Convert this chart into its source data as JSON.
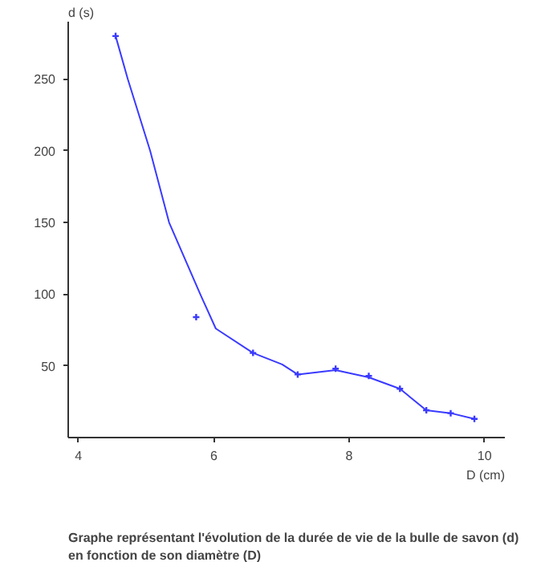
{
  "chart_data": {
    "type": "scatter",
    "title": "Graphe représentant l'évolution de la durée de vie de la bulle de savon (d)\nen fonction de son diamètre (D)",
    "xlabel": "D (cm)",
    "ylabel": "d (s)",
    "x": [
      4.55,
      5.74,
      6.58,
      7.24,
      7.8,
      8.29,
      8.75,
      9.14,
      9.5,
      9.85
    ],
    "series": [
      {
        "color": "#3a3aff",
        "values": [
          280,
          84,
          59,
          44,
          48,
          43,
          34,
          19,
          17,
          13
        ],
        "marker": "cross"
      },
      {
        "type": "line",
        "color": "#3a3aff",
        "x": [
          4.55,
          4.73,
          5.06,
          5.34,
          5.8,
          6.03,
          6.58,
          7.01,
          7.24,
          7.8,
          8.29,
          8.75,
          9.14,
          9.5,
          9.85
        ],
        "values": [
          280,
          250,
          200,
          150,
          100,
          76,
          59,
          51,
          44,
          47,
          42,
          34,
          19,
          17,
          13
        ],
        "marker": "none"
      }
    ],
    "xlim": [
      3.85,
      10.3
    ],
    "ylim": [
      0,
      290
    ],
    "xticks": [
      4,
      6,
      8,
      10
    ],
    "yticks": [
      50,
      100,
      150,
      200,
      250
    ],
    "grid": false,
    "line_style": "solid"
  }
}
